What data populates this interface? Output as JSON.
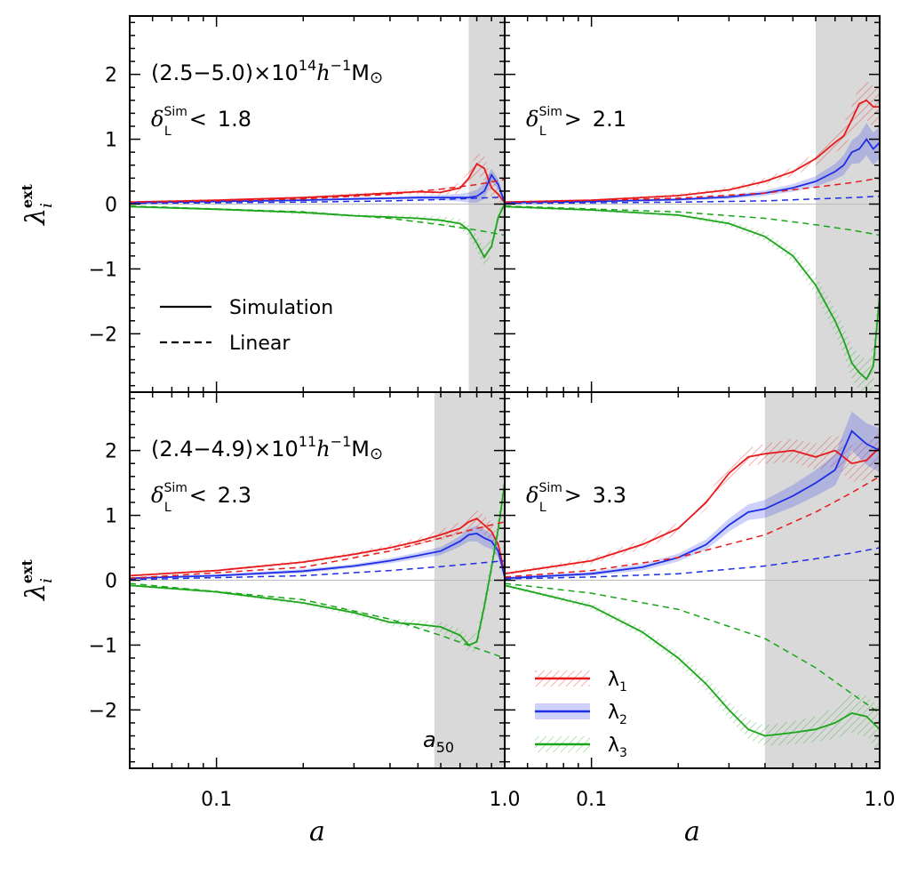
{
  "colors": {
    "lambda1": "#e8191a",
    "lambda2": "#1e2ee6",
    "lambda3": "#1aa51a",
    "shade": "#d9d9d9"
  },
  "chart_data": [
    {
      "type": "line",
      "panel": "top-left",
      "mass_range": "(2.5−5.0)×10",
      "mass_exp": "14",
      "mass_unit": "h",
      "mass_unit_sup": "−1",
      "mass_unit_tail": "M",
      "delta_sym": "δ",
      "delta_sup": "Sim",
      "delta_sub": "L",
      "delta_rel": "<",
      "delta_val": "1.8",
      "xscale": "log",
      "xlim": [
        0.05,
        1.0
      ],
      "ylim": [
        -2.9,
        2.9
      ],
      "shade_from": 0.75,
      "series": [
        {
          "name": "λ1",
          "kind": "sim",
          "x": [
            0.05,
            0.1,
            0.2,
            0.3,
            0.4,
            0.5,
            0.6,
            0.7,
            0.75,
            0.8,
            0.85,
            0.9,
            0.95,
            1.0
          ],
          "y": [
            0.03,
            0.06,
            0.1,
            0.14,
            0.17,
            0.19,
            0.18,
            0.25,
            0.4,
            0.62,
            0.55,
            0.25,
            0.15,
            0.02
          ],
          "band": [
            0.02,
            0.02,
            0.02,
            0.03,
            0.03,
            0.04,
            0.05,
            0.08,
            0.12,
            0.16,
            0.2,
            0.15,
            0.1,
            0.05
          ]
        },
        {
          "name": "λ2",
          "kind": "sim",
          "x": [
            0.05,
            0.1,
            0.2,
            0.3,
            0.4,
            0.5,
            0.6,
            0.7,
            0.75,
            0.8,
            0.85,
            0.9,
            0.95,
            1.0
          ],
          "y": [
            0.02,
            0.04,
            0.06,
            0.08,
            0.09,
            0.1,
            0.1,
            0.1,
            0.1,
            0.12,
            0.2,
            0.45,
            0.3,
            0.02
          ],
          "band": [
            0.01,
            0.01,
            0.02,
            0.02,
            0.02,
            0.03,
            0.04,
            0.06,
            0.08,
            0.1,
            0.12,
            0.1,
            0.08,
            0.04
          ]
        },
        {
          "name": "λ3",
          "kind": "sim",
          "x": [
            0.05,
            0.1,
            0.2,
            0.3,
            0.4,
            0.5,
            0.6,
            0.7,
            0.75,
            0.8,
            0.85,
            0.9,
            0.95,
            1.0
          ],
          "y": [
            -0.04,
            -0.08,
            -0.13,
            -0.18,
            -0.2,
            -0.22,
            -0.25,
            -0.3,
            -0.4,
            -0.6,
            -0.82,
            -0.65,
            -0.2,
            0.0
          ],
          "band": [
            0.02,
            0.02,
            0.03,
            0.03,
            0.04,
            0.05,
            0.06,
            0.08,
            0.1,
            0.12,
            0.15,
            0.12,
            0.08,
            0.05
          ]
        },
        {
          "name": "λ1",
          "kind": "linear",
          "x": [
            0.05,
            0.2,
            0.4,
            0.6,
            0.8,
            1.0
          ],
          "y": [
            0.02,
            0.08,
            0.15,
            0.23,
            0.3,
            0.38
          ]
        },
        {
          "name": "λ2",
          "kind": "linear",
          "x": [
            0.05,
            0.2,
            0.4,
            0.6,
            0.8,
            1.0
          ],
          "y": [
            0.01,
            0.03,
            0.05,
            0.07,
            0.09,
            0.11
          ]
        },
        {
          "name": "λ3",
          "kind": "linear",
          "x": [
            0.05,
            0.2,
            0.4,
            0.6,
            0.8,
            1.0
          ],
          "y": [
            -0.03,
            -0.12,
            -0.22,
            -0.32,
            -0.4,
            -0.48
          ]
        }
      ]
    },
    {
      "type": "line",
      "panel": "top-right",
      "delta_sym": "δ",
      "delta_sup": "Sim",
      "delta_sub": "L",
      "delta_rel": ">",
      "delta_val": "2.1",
      "xscale": "log",
      "xlim": [
        0.05,
        1.0
      ],
      "ylim": [
        -2.9,
        2.9
      ],
      "shade_from": 0.6,
      "series": [
        {
          "name": "λ1",
          "kind": "sim",
          "x": [
            0.05,
            0.1,
            0.2,
            0.3,
            0.4,
            0.5,
            0.6,
            0.7,
            0.75,
            0.8,
            0.85,
            0.9,
            0.95,
            1.0
          ],
          "y": [
            0.03,
            0.06,
            0.13,
            0.22,
            0.35,
            0.5,
            0.7,
            0.95,
            1.05,
            1.3,
            1.55,
            1.6,
            1.5,
            1.5
          ],
          "band": [
            0.02,
            0.02,
            0.03,
            0.04,
            0.05,
            0.07,
            0.1,
            0.15,
            0.18,
            0.22,
            0.28,
            0.3,
            0.32,
            0.3
          ]
        },
        {
          "name": "λ2",
          "kind": "sim",
          "x": [
            0.05,
            0.1,
            0.2,
            0.3,
            0.4,
            0.5,
            0.6,
            0.7,
            0.75,
            0.8,
            0.85,
            0.9,
            0.95,
            1.0
          ],
          "y": [
            0.02,
            0.04,
            0.07,
            0.11,
            0.17,
            0.25,
            0.35,
            0.5,
            0.6,
            0.8,
            0.85,
            1.0,
            0.85,
            0.95
          ],
          "band": [
            0.01,
            0.02,
            0.02,
            0.03,
            0.04,
            0.06,
            0.08,
            0.12,
            0.15,
            0.18,
            0.22,
            0.25,
            0.25,
            0.25
          ]
        },
        {
          "name": "λ3",
          "kind": "sim",
          "x": [
            0.05,
            0.1,
            0.2,
            0.3,
            0.4,
            0.5,
            0.6,
            0.7,
            0.75,
            0.8,
            0.85,
            0.9,
            0.95,
            1.0
          ],
          "y": [
            -0.04,
            -0.09,
            -0.17,
            -0.3,
            -0.5,
            -0.8,
            -1.25,
            -1.8,
            -2.1,
            -2.45,
            -2.6,
            -2.7,
            -2.5,
            -1.4
          ],
          "band": [
            0.02,
            0.03,
            0.03,
            0.05,
            0.07,
            0.1,
            0.15,
            0.2,
            0.22,
            0.25,
            0.28,
            0.3,
            0.3,
            0.3
          ]
        },
        {
          "name": "λ1",
          "kind": "linear",
          "x": [
            0.05,
            0.2,
            0.4,
            0.6,
            0.8,
            1.0
          ],
          "y": [
            0.02,
            0.09,
            0.17,
            0.26,
            0.33,
            0.4
          ]
        },
        {
          "name": "λ2",
          "kind": "linear",
          "x": [
            0.05,
            0.2,
            0.4,
            0.6,
            0.8,
            1.0
          ],
          "y": [
            0.01,
            0.03,
            0.05,
            0.08,
            0.1,
            0.12
          ]
        },
        {
          "name": "λ3",
          "kind": "linear",
          "x": [
            0.05,
            0.2,
            0.4,
            0.6,
            0.8,
            1.0
          ],
          "y": [
            -0.03,
            -0.12,
            -0.22,
            -0.32,
            -0.4,
            -0.48
          ]
        }
      ]
    },
    {
      "type": "line",
      "panel": "bottom-left",
      "mass_range": "(2.4−4.9)×10",
      "mass_exp": "11",
      "mass_unit": "h",
      "mass_unit_sup": "−1",
      "mass_unit_tail": "M",
      "delta_sym": "δ",
      "delta_sup": "Sim",
      "delta_sub": "L",
      "delta_rel": "<",
      "delta_val": "2.3",
      "shade_label": "a",
      "shade_label_sub": "50",
      "xscale": "log",
      "xlim": [
        0.05,
        1.0
      ],
      "ylim": [
        -2.9,
        2.9
      ],
      "shade_from": 0.57,
      "series": [
        {
          "name": "λ1",
          "kind": "sim",
          "x": [
            0.05,
            0.1,
            0.2,
            0.3,
            0.4,
            0.5,
            0.6,
            0.7,
            0.75,
            0.8,
            0.85,
            0.9,
            0.95,
            1.0
          ],
          "y": [
            0.07,
            0.15,
            0.28,
            0.4,
            0.5,
            0.6,
            0.7,
            0.8,
            0.9,
            0.95,
            0.85,
            0.75,
            0.55,
            0.1
          ],
          "band": [
            0.02,
            0.02,
            0.03,
            0.04,
            0.05,
            0.06,
            0.08,
            0.1,
            0.12,
            0.14,
            0.15,
            0.14,
            0.12,
            0.08
          ]
        },
        {
          "name": "λ2",
          "kind": "sim",
          "x": [
            0.05,
            0.1,
            0.2,
            0.3,
            0.4,
            0.5,
            0.6,
            0.7,
            0.75,
            0.8,
            0.85,
            0.9,
            0.95,
            1.0
          ],
          "y": [
            0.03,
            0.07,
            0.14,
            0.22,
            0.3,
            0.38,
            0.45,
            0.6,
            0.7,
            0.72,
            0.65,
            0.6,
            0.45,
            0.05
          ],
          "band": [
            0.01,
            0.02,
            0.03,
            0.03,
            0.04,
            0.05,
            0.06,
            0.08,
            0.1,
            0.12,
            0.13,
            0.12,
            0.1,
            0.06
          ]
        },
        {
          "name": "λ3",
          "kind": "sim",
          "x": [
            0.05,
            0.1,
            0.2,
            0.3,
            0.4,
            0.5,
            0.6,
            0.7,
            0.75,
            0.8,
            0.85,
            0.9,
            0.95,
            1.0
          ],
          "y": [
            -0.08,
            -0.18,
            -0.35,
            -0.5,
            -0.65,
            -0.68,
            -0.72,
            -0.85,
            -1.0,
            -0.95,
            -0.4,
            0.2,
            0.8,
            1.5
          ],
          "band": [
            0.02,
            0.03,
            0.04,
            0.05,
            0.06,
            0.07,
            0.08,
            0.1,
            0.12,
            0.14,
            0.16,
            0.18,
            0.2,
            0.2
          ]
        },
        {
          "name": "λ1",
          "kind": "linear",
          "x": [
            0.05,
            0.2,
            0.4,
            0.6,
            0.8,
            1.0
          ],
          "y": [
            0.03,
            0.2,
            0.45,
            0.65,
            0.8,
            0.9
          ]
        },
        {
          "name": "λ2",
          "kind": "linear",
          "x": [
            0.05,
            0.2,
            0.4,
            0.6,
            0.8,
            1.0
          ],
          "y": [
            0.01,
            0.07,
            0.15,
            0.21,
            0.26,
            0.3
          ]
        },
        {
          "name": "λ3",
          "kind": "linear",
          "x": [
            0.05,
            0.2,
            0.4,
            0.6,
            0.8,
            1.0
          ],
          "y": [
            -0.05,
            -0.3,
            -0.6,
            -0.85,
            -1.05,
            -1.2
          ]
        }
      ]
    },
    {
      "type": "line",
      "panel": "bottom-right",
      "delta_sym": "δ",
      "delta_sup": "Sim",
      "delta_sub": "L",
      "delta_rel": ">",
      "delta_val": "3.3",
      "xscale": "log",
      "xlim": [
        0.05,
        1.0
      ],
      "ylim": [
        -2.9,
        2.9
      ],
      "shade_from": 0.4,
      "series": [
        {
          "name": "λ1",
          "kind": "sim",
          "x": [
            0.05,
            0.1,
            0.15,
            0.2,
            0.25,
            0.3,
            0.35,
            0.4,
            0.5,
            0.6,
            0.7,
            0.8,
            0.9,
            1.0
          ],
          "y": [
            0.1,
            0.3,
            0.55,
            0.8,
            1.2,
            1.65,
            1.9,
            1.95,
            2.0,
            1.9,
            2.0,
            1.8,
            1.85,
            2.05
          ],
          "band": [
            0.03,
            0.05,
            0.07,
            0.09,
            0.1,
            0.12,
            0.14,
            0.15,
            0.18,
            0.2,
            0.25,
            0.28,
            0.3,
            0.32
          ]
        },
        {
          "name": "λ2",
          "kind": "sim",
          "x": [
            0.05,
            0.1,
            0.15,
            0.2,
            0.25,
            0.3,
            0.35,
            0.4,
            0.5,
            0.6,
            0.7,
            0.8,
            0.9,
            1.0
          ],
          "y": [
            0.03,
            0.1,
            0.2,
            0.35,
            0.55,
            0.85,
            1.05,
            1.1,
            1.3,
            1.5,
            1.7,
            2.3,
            2.1,
            2.0
          ],
          "band": [
            0.02,
            0.03,
            0.05,
            0.06,
            0.08,
            0.1,
            0.12,
            0.14,
            0.17,
            0.2,
            0.24,
            0.3,
            0.32,
            0.34
          ]
        },
        {
          "name": "λ3",
          "kind": "sim",
          "x": [
            0.05,
            0.1,
            0.15,
            0.2,
            0.25,
            0.3,
            0.35,
            0.4,
            0.5,
            0.6,
            0.7,
            0.8,
            0.9,
            1.0
          ],
          "y": [
            -0.08,
            -0.4,
            -0.8,
            -1.2,
            -1.6,
            -2.0,
            -2.3,
            -2.4,
            -2.35,
            -2.3,
            -2.2,
            -2.05,
            -2.1,
            -2.3
          ],
          "band": [
            0.03,
            0.05,
            0.07,
            0.09,
            0.11,
            0.13,
            0.15,
            0.16,
            0.18,
            0.2,
            0.24,
            0.3,
            0.32,
            0.34
          ]
        },
        {
          "name": "λ1",
          "kind": "linear",
          "x": [
            0.05,
            0.1,
            0.2,
            0.4,
            0.6,
            0.8,
            1.0
          ],
          "y": [
            0.05,
            0.15,
            0.35,
            0.7,
            1.05,
            1.35,
            1.6
          ]
        },
        {
          "name": "λ2",
          "kind": "linear",
          "x": [
            0.05,
            0.1,
            0.2,
            0.4,
            0.6,
            0.8,
            1.0
          ],
          "y": [
            0.02,
            0.05,
            0.1,
            0.22,
            0.33,
            0.42,
            0.5
          ]
        },
        {
          "name": "λ3",
          "kind": "linear",
          "x": [
            0.05,
            0.1,
            0.2,
            0.4,
            0.6,
            0.8,
            1.0
          ],
          "y": [
            -0.05,
            -0.2,
            -0.45,
            -0.9,
            -1.35,
            -1.75,
            -2.05
          ]
        }
      ]
    }
  ],
  "axes": {
    "xlabel": "a",
    "ylabel_sym": "λ",
    "ylabel_sub": "i",
    "ylabel_sup": "ext",
    "xtick_labels_left": [
      "0.1",
      "1.0"
    ],
    "xtick_labels_right": [
      "0.1",
      "1.0"
    ],
    "ytick_labels": [
      "−2",
      "−1",
      "0",
      "1",
      "2"
    ]
  },
  "legend_style": {
    "solid_label": "Simulation",
    "dashed_label": "Linear"
  },
  "legend_series": {
    "items": [
      {
        "sym": "λ",
        "sub": "1",
        "color_key": "lambda1"
      },
      {
        "sym": "λ",
        "sub": "2",
        "color_key": "lambda2"
      },
      {
        "sym": "λ",
        "sub": "3",
        "color_key": "lambda3"
      }
    ]
  }
}
